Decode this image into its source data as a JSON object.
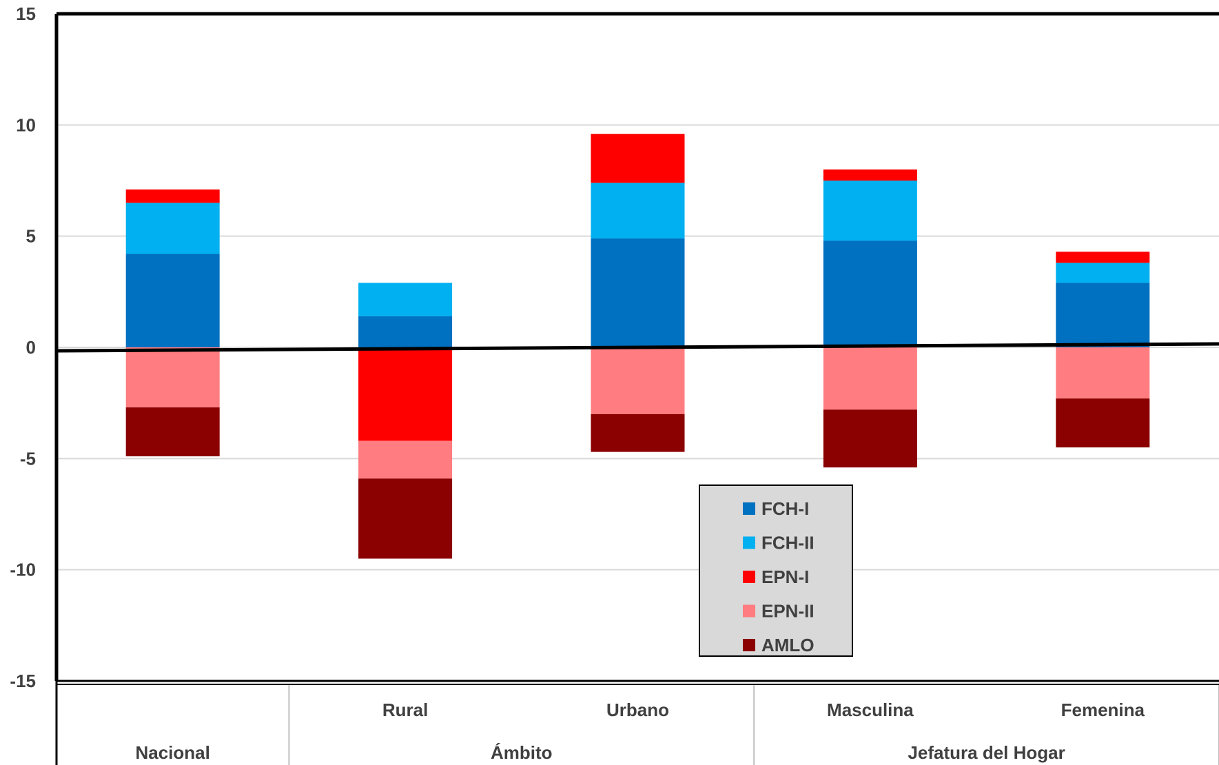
{
  "chart_data": {
    "type": "bar",
    "stacked": true,
    "categories": [
      "Nacional",
      "Rural",
      "Urbano",
      "Masculina",
      "Femenina"
    ],
    "category_groups": [
      {
        "label": "Nacional",
        "categories": [
          "Nacional"
        ]
      },
      {
        "label": "Ámbito",
        "categories": [
          "Rural",
          "Urbano"
        ]
      },
      {
        "label": "Jefatura del Hogar",
        "categories": [
          "Masculina",
          "Femenina"
        ]
      }
    ],
    "category_sublabels": [
      "",
      "Rural",
      "Urbano",
      "Masculina",
      "Femenina"
    ],
    "series": [
      {
        "name": "FCH-I",
        "color": "#0070c0",
        "values": [
          4.2,
          1.4,
          4.9,
          4.8,
          2.9
        ]
      },
      {
        "name": "FCH-II",
        "color": "#00b0f0",
        "values": [
          2.3,
          1.5,
          2.5,
          2.7,
          0.9
        ]
      },
      {
        "name": "EPN-I",
        "color": "#ff0000",
        "values": [
          0.6,
          -4.2,
          2.2,
          0.5,
          0.5
        ]
      },
      {
        "name": "EPN-II",
        "color": "#ff7c80",
        "values": [
          -2.7,
          -1.7,
          -3.0,
          -2.8,
          -2.3
        ]
      },
      {
        "name": "AMLO",
        "color": "#8b0000",
        "values": [
          -2.2,
          -3.6,
          -1.7,
          -2.6,
          -2.2
        ]
      }
    ],
    "ylim": [
      -15,
      15
    ],
    "yticks": [
      "15",
      "10",
      "5",
      "0",
      "-5",
      "-10",
      "-15"
    ],
    "ytick_values": [
      15,
      10,
      5,
      0,
      -5,
      -10,
      -15
    ],
    "grid": true,
    "legend_position": "bottom-center"
  }
}
